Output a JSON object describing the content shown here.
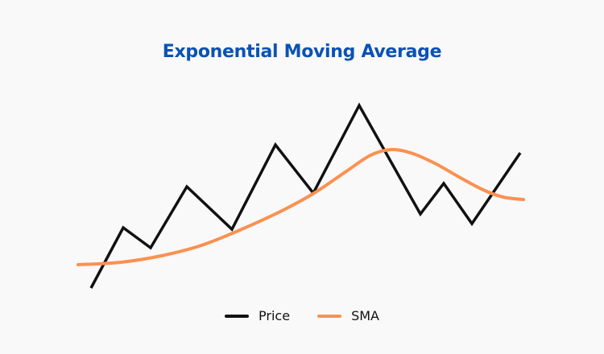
{
  "chart_data": {
    "type": "line",
    "title": "Exponential Moving Average",
    "xlabel": "",
    "ylabel": "",
    "grid": false,
    "legend_position": "bottom-center",
    "series": [
      {
        "name": "Price",
        "color": "#111111",
        "x": [
          2.6,
          10.6,
          17.4,
          26.4,
          37.6,
          48.4,
          57.8,
          69.2,
          84.4,
          90.2,
          97.2,
          109.2
        ],
        "y": [
          11,
          48.5,
          36,
          74,
          47.5,
          100,
          70,
          124.5,
          57,
          76,
          51,
          95
        ]
      },
      {
        "name": "SMA",
        "color": "#fb9150",
        "x": [
          -0.6,
          10,
          20,
          30,
          40,
          50,
          58,
          66,
          72,
          77,
          82,
          88,
          94,
          100,
          105,
          110
        ],
        "y": [
          25.5,
          27,
          31,
          37.5,
          47.5,
          59,
          70,
          83.5,
          93.5,
          97,
          95,
          88.5,
          80,
          72,
          67.5,
          66
        ]
      }
    ]
  }
}
